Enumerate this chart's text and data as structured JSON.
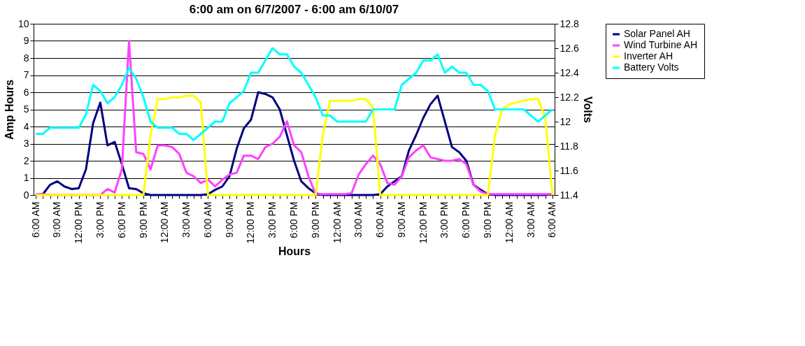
{
  "chart_data": {
    "type": "line",
    "title": "6:00 am on 6/7/2007 - 6:00 am 6/10/07",
    "xlabel": "Hours",
    "ylabel": "Amp Hours",
    "y2label": "Volts",
    "categories": [
      "6:00 AM",
      null,
      null,
      "9:00 AM",
      null,
      null,
      "12:00 PM",
      null,
      null,
      "3:00 PM",
      null,
      null,
      "6:00 PM",
      null,
      null,
      "9:00 PM",
      null,
      null,
      "12:00 AM",
      null,
      null,
      "3:00 AM",
      null,
      null,
      "6:00 AM",
      null,
      null,
      "9:00 AM",
      null,
      null,
      "12:00 PM",
      null,
      null,
      "3:00 PM",
      null,
      null,
      "6:00 PM",
      null,
      null,
      "9:00 PM",
      null,
      null,
      "12:00 AM",
      null,
      null,
      "3:00 AM",
      null,
      null,
      "6:00 AM",
      null,
      null,
      "9:00 AM",
      null,
      null,
      "12:00 PM",
      null,
      null,
      "3:00 PM",
      null,
      null,
      "6:00 PM",
      null,
      null,
      "9:00 PM",
      null,
      null,
      "12:00 AM",
      null,
      null,
      "3:00 AM",
      null,
      null,
      "6:00 AM"
    ],
    "series": [
      {
        "name": "Solar Panel AH",
        "color": "#000080",
        "values": [
          0,
          0.05,
          0.6,
          0.8,
          0.5,
          0.35,
          0.4,
          1.5,
          4.2,
          5.4,
          2.9,
          3.1,
          1.8,
          0.4,
          0.35,
          0.1,
          0,
          0,
          0,
          0,
          0,
          0,
          0,
          0,
          0.05,
          0.3,
          0.5,
          1.1,
          2.7,
          3.9,
          4.4,
          6.0,
          5.9,
          5.7,
          5.0,
          3.5,
          2.0,
          0.8,
          0.4,
          0.1,
          0,
          0,
          0,
          0,
          0,
          0,
          0,
          0,
          0.05,
          0.5,
          0.8,
          1.1,
          2.6,
          3.5,
          4.5,
          5.3,
          5.8,
          4.3,
          2.8,
          2.5,
          2.0,
          0.6,
          0.3,
          0.05,
          0,
          0,
          0,
          0,
          0,
          0,
          0,
          0,
          0.05
        ]
      },
      {
        "name": "Wind Turbine AH",
        "color": "#ff40ff",
        "values": [
          0.05,
          0.05,
          0,
          0,
          0,
          0,
          0,
          0,
          0,
          0,
          0.35,
          0.15,
          1.5,
          9.0,
          2.5,
          2.4,
          1.5,
          2.9,
          2.9,
          2.8,
          2.4,
          1.3,
          1.1,
          0.7,
          0.9,
          0.5,
          0.9,
          1.2,
          1.3,
          2.3,
          2.3,
          2.1,
          2.8,
          3.0,
          3.4,
          4.3,
          2.9,
          2.5,
          1.1,
          0.05,
          0.05,
          0.05,
          0.05,
          0.05,
          0.1,
          1.2,
          1.8,
          2.3,
          1.8,
          0.7,
          0.6,
          1.1,
          2.2,
          2.6,
          2.9,
          2.2,
          2.1,
          2.0,
          2.0,
          2.1,
          1.8,
          0.6,
          0.2,
          0.05,
          0.05,
          0.05,
          0.05,
          0.05,
          0.05,
          0.05,
          0.05,
          0.05,
          0.05
        ]
      },
      {
        "name": "Inverter AH",
        "color": "#ffff00",
        "values": [
          0,
          0,
          0,
          0,
          0,
          0,
          0,
          0,
          0,
          0,
          0,
          0,
          0,
          0,
          0,
          0,
          3.5,
          5.6,
          5.6,
          5.7,
          5.7,
          5.8,
          5.8,
          5.4,
          0,
          0,
          0,
          0,
          0,
          0,
          0,
          0,
          0,
          0,
          0,
          0,
          0,
          0,
          0,
          0,
          3.5,
          5.5,
          5.5,
          5.5,
          5.5,
          5.6,
          5.6,
          5.1,
          0,
          0,
          0,
          0,
          0,
          0,
          0,
          0,
          0,
          0,
          0,
          0,
          0,
          0,
          0,
          0,
          3.5,
          5.0,
          5.3,
          5.4,
          5.5,
          5.6,
          5.6,
          4.5,
          0
        ]
      },
      {
        "name": "Battery Volts",
        "color": "#00ffff",
        "axis": "y2",
        "values": [
          11.9,
          11.9,
          11.95,
          11.95,
          11.95,
          11.95,
          11.95,
          12.06,
          12.3,
          12.25,
          12.15,
          12.2,
          12.3,
          12.44,
          12.35,
          12.2,
          12.0,
          11.95,
          11.95,
          11.95,
          11.9,
          11.9,
          11.85,
          11.9,
          11.95,
          12.0,
          12.0,
          12.15,
          12.2,
          12.25,
          12.4,
          12.4,
          12.5,
          12.6,
          12.55,
          12.55,
          12.45,
          12.4,
          12.3,
          12.2,
          12.05,
          12.05,
          12.0,
          12.0,
          12.0,
          12.0,
          12.0,
          12.1,
          12.1,
          12.1,
          12.1,
          12.3,
          12.35,
          12.4,
          12.5,
          12.5,
          12.55,
          12.4,
          12.45,
          12.4,
          12.4,
          12.3,
          12.3,
          12.25,
          12.1,
          12.1,
          12.1,
          12.1,
          12.1,
          12.05,
          12.0,
          12.05,
          12.1
        ]
      }
    ],
    "ylim": [
      0,
      10
    ],
    "yticks": [
      0,
      1,
      2,
      3,
      4,
      5,
      6,
      7,
      8,
      9,
      10
    ],
    "y2lim": [
      11.4,
      12.8
    ],
    "y2ticks": [
      11.4,
      11.6,
      11.8,
      12,
      12.2,
      12.4,
      12.6,
      12.8
    ],
    "grid": "y",
    "legend": "right",
    "marker": "none",
    "line_style": "solid"
  }
}
